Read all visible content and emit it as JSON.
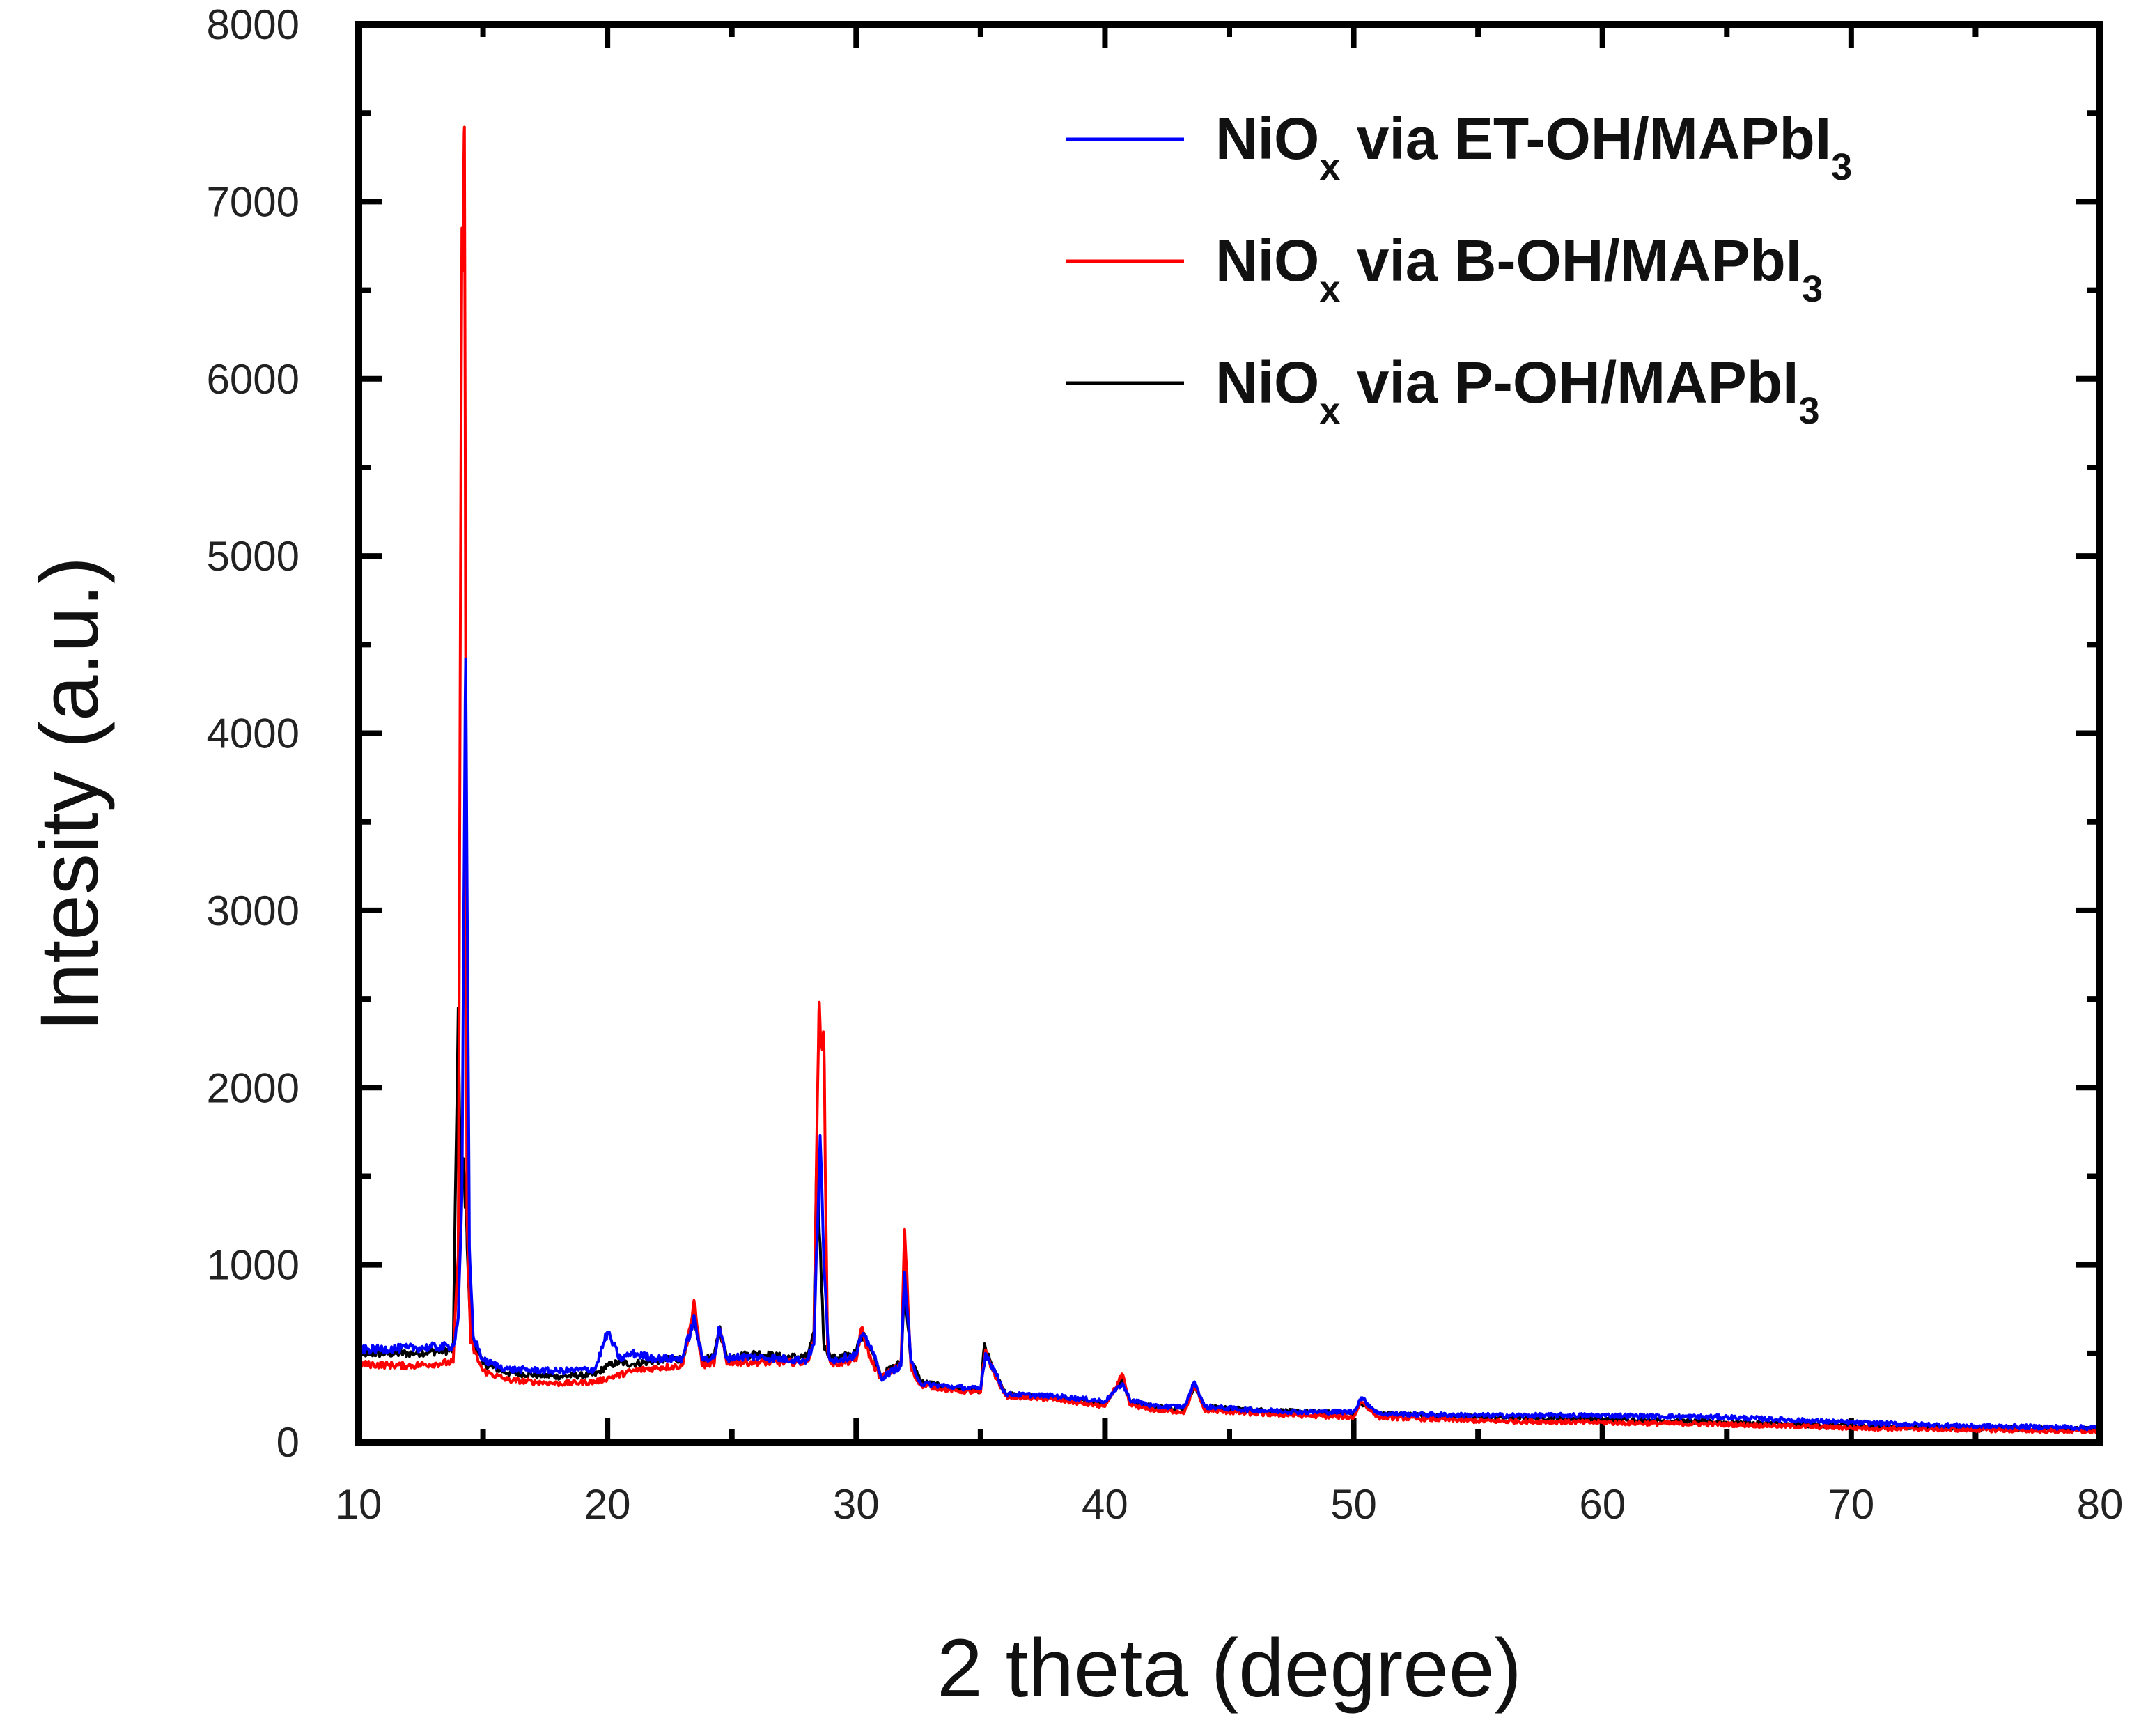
{
  "chart_data": {
    "type": "line",
    "title": "",
    "xlabel": "2 theta (degree)",
    "ylabel": "Intesity (a.u.)",
    "xlim": [
      10,
      80
    ],
    "ylim": [
      0,
      8000
    ],
    "xticks": [
      "10",
      "20",
      "30",
      "40",
      "50",
      "60",
      "70",
      "80"
    ],
    "yticks": [
      "0",
      "1000",
      "2000",
      "3000",
      "4000",
      "5000",
      "6000",
      "7000",
      "8000"
    ],
    "legend_position": "top-right",
    "series": [
      {
        "name": "NiOx via P-OH/MAPbI3",
        "legend": {
          "main": "NiO",
          "sub": "x",
          "mid": " via P-OH/MAPbI",
          "end": "3"
        },
        "color": "#000000",
        "x": [
          10,
          12,
          13.8,
          14.0,
          14.1,
          14.2,
          14.35,
          14.5,
          15,
          16,
          18,
          19.5,
          20,
          20.5,
          21,
          22,
          23,
          23.5,
          23.8,
          24.3,
          24.5,
          24.8,
          25,
          26,
          27,
          28,
          28.3,
          28.4,
          28.55,
          28.7,
          29,
          30,
          30.2,
          30.6,
          31,
          31.8,
          31.95,
          32.2,
          32.6,
          34,
          35,
          35.15,
          35.5,
          36,
          38,
          40,
          40.7,
          41,
          42,
          43.2,
          43.6,
          44,
          46,
          48,
          50,
          50.3,
          51,
          55,
          60,
          65,
          70,
          75,
          80
        ],
        "y": [
          500,
          500,
          520,
          2450,
          1350,
          1600,
          1180,
          600,
          440,
          390,
          370,
          380,
          430,
          450,
          440,
          460,
          470,
          700,
          460,
          480,
          650,
          470,
          480,
          500,
          480,
          480,
          600,
          1540,
          1120,
          550,
          470,
          500,
          620,
          520,
          380,
          450,
          880,
          460,
          340,
          300,
          290,
          540,
          410,
          270,
          250,
          220,
          350,
          230,
          200,
          190,
          320,
          200,
          180,
          170,
          160,
          220,
          160,
          140,
          130,
          110,
          90,
          80,
          70
        ]
      },
      {
        "name": "NiOx via B-OH/MAPbI3",
        "legend": {
          "main": "NiO",
          "sub": "x",
          "mid": " via B-OH/MAPbI",
          "end": "3"
        },
        "color": "#ff0000",
        "x": [
          10,
          12,
          13.8,
          14.0,
          14.15,
          14.25,
          14.35,
          14.5,
          15,
          16,
          18,
          19.5,
          20,
          20.5,
          21,
          22,
          23,
          23.5,
          23.8,
          24.3,
          24.5,
          24.8,
          25,
          26,
          27,
          28,
          28.3,
          28.5,
          28.7,
          28.85,
          29,
          30,
          30.2,
          30.6,
          31,
          31.8,
          31.95,
          32.2,
          32.6,
          34,
          35,
          35.2,
          35.5,
          36,
          38,
          40,
          40.7,
          41,
          42,
          43.2,
          43.6,
          44,
          46,
          48,
          50,
          50.3,
          51,
          55,
          60,
          65,
          70,
          75,
          80
        ],
        "y": [
          440,
          430,
          450,
          1050,
          6850,
          7420,
          1300,
          560,
          400,
          350,
          330,
          340,
          360,
          380,
          400,
          420,
          430,
          780,
          430,
          450,
          640,
          440,
          450,
          450,
          450,
          450,
          560,
          2430,
          2250,
          520,
          440,
          460,
          640,
          460,
          360,
          440,
          1200,
          420,
          320,
          290,
          280,
          520,
          400,
          260,
          240,
          200,
          380,
          210,
          180,
          170,
          320,
          180,
          160,
          150,
          140,
          230,
          140,
          120,
          110,
          100,
          80,
          70,
          60
        ]
      },
      {
        "name": "NiOx via ET-OH/MAPbI3",
        "legend": {
          "main": "NiO",
          "sub": "x",
          "mid": " via ET-OH/MAPbI",
          "end": "3"
        },
        "color": "#0000ff",
        "x": [
          10,
          12,
          13.8,
          14.0,
          14.15,
          14.3,
          14.45,
          14.6,
          15,
          16,
          18,
          19.5,
          20,
          20.5,
          21,
          22,
          23,
          23.5,
          23.8,
          24.3,
          24.5,
          24.8,
          25,
          26,
          27,
          28,
          28.3,
          28.55,
          28.7,
          28.9,
          29,
          30,
          30.2,
          30.6,
          31,
          31.8,
          31.95,
          32.2,
          32.6,
          34,
          35,
          35.2,
          35.5,
          36,
          38,
          40,
          40.7,
          41,
          42,
          43.2,
          43.6,
          44,
          46,
          48,
          50,
          50.3,
          51,
          55,
          60,
          65,
          70,
          75,
          80
        ],
        "y": [
          520,
          530,
          540,
          700,
          1400,
          4420,
          1100,
          600,
          460,
          410,
          400,
          410,
          620,
          470,
          500,
          470,
          470,
          700,
          470,
          480,
          640,
          470,
          480,
          480,
          470,
          460,
          550,
          1730,
          1000,
          500,
          460,
          490,
          600,
          540,
          360,
          430,
          960,
          450,
          330,
          310,
          300,
          500,
          420,
          270,
          260,
          230,
          330,
          240,
          200,
          200,
          340,
          200,
          180,
          170,
          170,
          250,
          160,
          150,
          150,
          140,
          110,
          90,
          80
        ]
      }
    ]
  }
}
